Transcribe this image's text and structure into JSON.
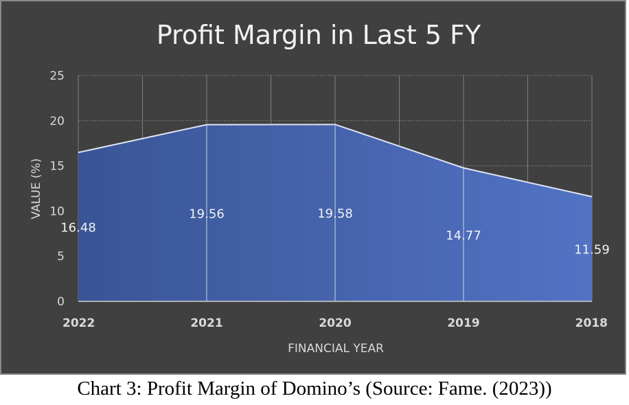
{
  "chart_data": {
    "type": "area",
    "title": "Profit Margin in Last 5 FY",
    "xlabel": "FINANCIAL YEAR",
    "ylabel": "VALUE (%)",
    "categories": [
      "2022",
      "2021",
      "2020",
      "2019",
      "2018"
    ],
    "values": [
      16.48,
      19.56,
      19.58,
      14.77,
      11.59
    ],
    "data_labels": [
      "16.48",
      "19.56",
      "19.58",
      "14.77",
      "11.59"
    ],
    "ylim": [
      0,
      25
    ],
    "yticks": [
      0,
      5,
      10,
      15,
      20,
      25
    ],
    "grid": true,
    "legend": "none",
    "colors": {
      "background": "#404040",
      "fill_left": "#3a5596",
      "fill_right": "#5272c4",
      "line": "#dde4f3",
      "grid": "#7f7f7f"
    }
  },
  "caption": "Chart 3: Profit Margin of Domino’s (Source: Fame. (2023))"
}
